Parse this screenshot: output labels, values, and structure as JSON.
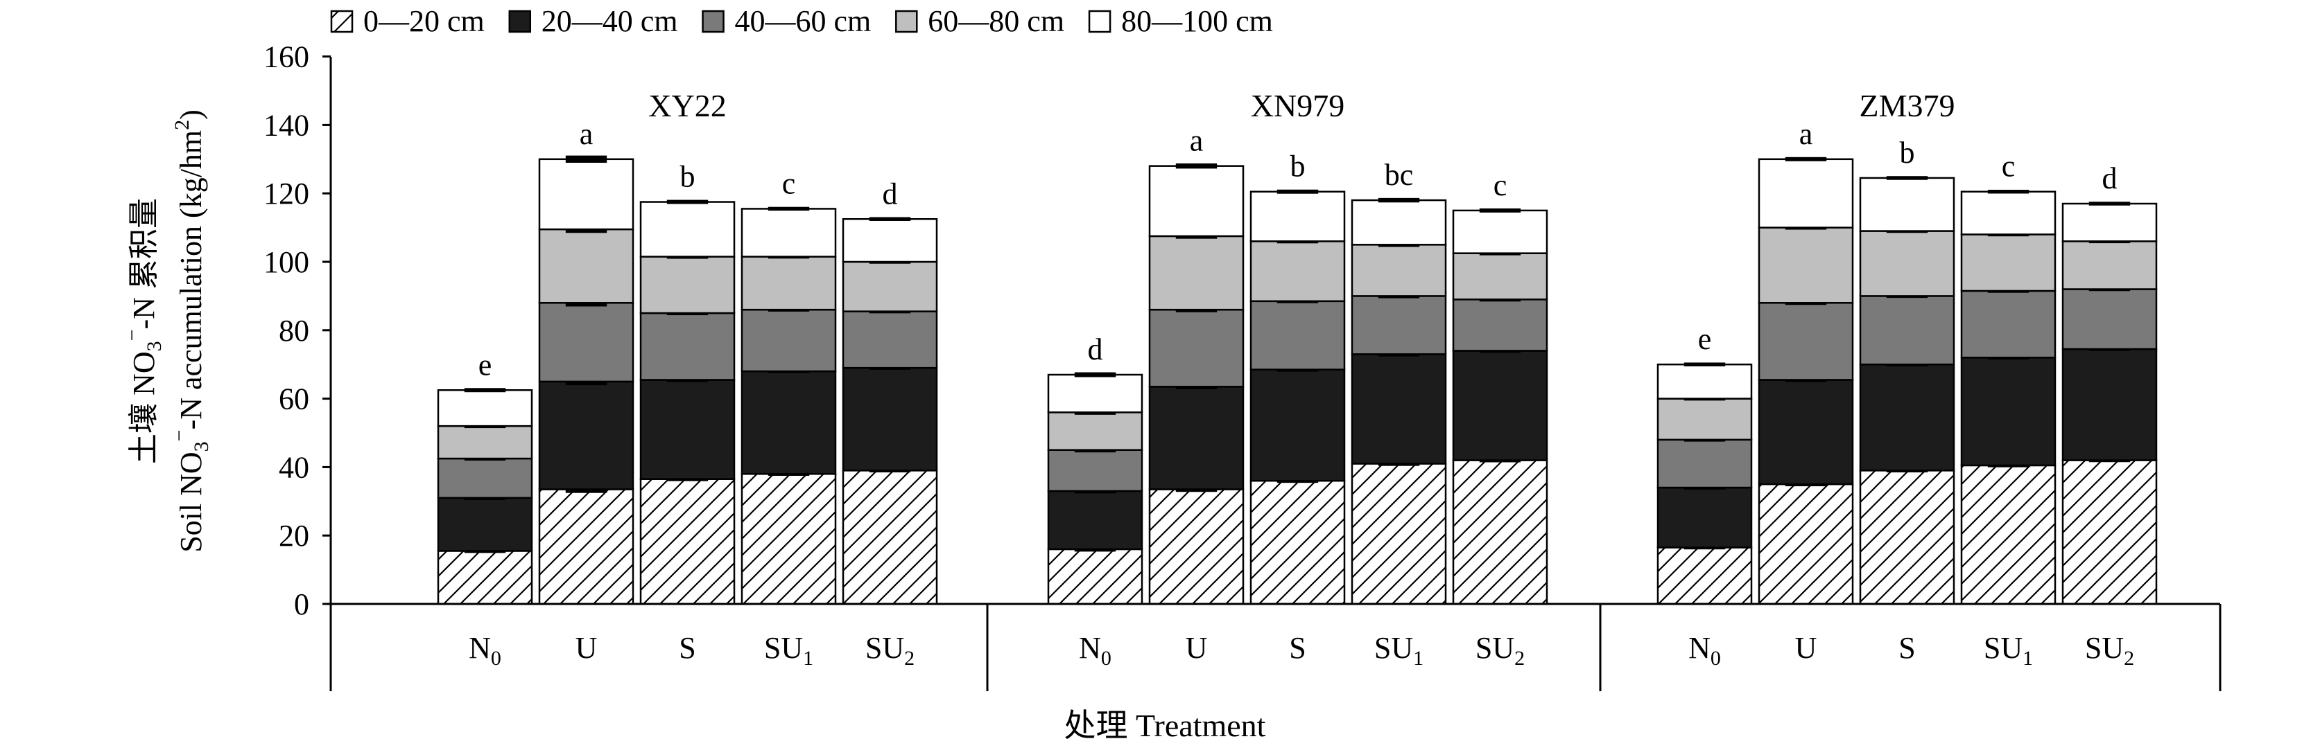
{
  "chart_data": {
    "type": "bar",
    "stacked": true,
    "ylim": [
      0,
      160
    ],
    "yticks": [
      0,
      20,
      40,
      60,
      80,
      100,
      120,
      140,
      160
    ],
    "ylabel_cn_prefix": "土壤 NO",
    "ylabel_cn_sub": "3",
    "ylabel_cn_sup": "−",
    "ylabel_cn_suffix": "-N 累积量",
    "ylabel_en_prefix": "Soil NO",
    "ylabel_en_sub": "3",
    "ylabel_en_sup": "−",
    "ylabel_en_suffix": "-N accumulation (kg/hm",
    "ylabel_en_sup2": "2",
    "ylabel_en_close": ")",
    "xlabel": "处理 Treatment",
    "legend_position": "top",
    "series": [
      {
        "name": "0—20 cm",
        "fill": "hatch"
      },
      {
        "name": "20—40 cm",
        "fill": "#1c1c1c"
      },
      {
        "name": "40—60 cm",
        "fill": "#7a7a7a"
      },
      {
        "name": "60—80 cm",
        "fill": "#bfbfbf"
      },
      {
        "name": "80—100 cm",
        "fill": "#ffffff"
      }
    ],
    "groups": [
      {
        "name": "XY22",
        "bars": [
          {
            "base": "N",
            "sub": "0",
            "layers": [
              15.5,
              15.5,
              11.5,
              9.5,
              10.5
            ],
            "err": 0.6,
            "letter": "e"
          },
          {
            "base": "U",
            "sub": "",
            "layers": [
              33.5,
              31.5,
              23,
              21.5,
              20.5
            ],
            "err": 1.5,
            "letter": "a"
          },
          {
            "base": "S",
            "sub": "",
            "layers": [
              36.5,
              29,
              19.5,
              16.5,
              16
            ],
            "err": 0.6,
            "letter": "b"
          },
          {
            "base": "SU",
            "sub": "1",
            "layers": [
              38,
              30,
              18,
              15.5,
              14
            ],
            "err": 0.5,
            "letter": "c"
          },
          {
            "base": "SU",
            "sub": "2",
            "layers": [
              39,
              30,
              16.5,
              14.5,
              12.5
            ],
            "err": 0.5,
            "letter": "d"
          }
        ]
      },
      {
        "name": "XN979",
        "bars": [
          {
            "base": "N",
            "sub": "0",
            "layers": [
              16,
              17,
              12,
              11,
              11
            ],
            "err": 0.8,
            "letter": "d"
          },
          {
            "base": "U",
            "sub": "",
            "layers": [
              33.5,
              30,
              22.5,
              21.5,
              20.5
            ],
            "err": 0.9,
            "letter": "a"
          },
          {
            "base": "S",
            "sub": "",
            "layers": [
              36,
              32.5,
              20,
              17.5,
              14.5
            ],
            "err": 0.6,
            "letter": "b"
          },
          {
            "base": "SU",
            "sub": "1",
            "layers": [
              41,
              32,
              17,
              15,
              13
            ],
            "err": 0.7,
            "letter": "bc"
          },
          {
            "base": "SU",
            "sub": "2",
            "layers": [
              42,
              32,
              15,
              13.5,
              12.5
            ],
            "err": 0.6,
            "letter": "c"
          }
        ]
      },
      {
        "name": "ZM379",
        "bars": [
          {
            "base": "N",
            "sub": "0",
            "layers": [
              16.5,
              17.5,
              14,
              12,
              10
            ],
            "err": 0.5,
            "letter": "e"
          },
          {
            "base": "U",
            "sub": "",
            "layers": [
              35,
              30.5,
              22.5,
              22,
              20
            ],
            "err": 0.6,
            "letter": "a"
          },
          {
            "base": "S",
            "sub": "",
            "layers": [
              39,
              31,
              20,
              19,
              15.5
            ],
            "err": 0.5,
            "letter": "b"
          },
          {
            "base": "SU",
            "sub": "1",
            "layers": [
              40.5,
              31.5,
              19.5,
              16.5,
              12.5
            ],
            "err": 0.5,
            "letter": "c"
          },
          {
            "base": "SU",
            "sub": "2",
            "layers": [
              42,
              32.5,
              17.5,
              14,
              11
            ],
            "err": 0.5,
            "letter": "d"
          }
        ]
      }
    ]
  }
}
